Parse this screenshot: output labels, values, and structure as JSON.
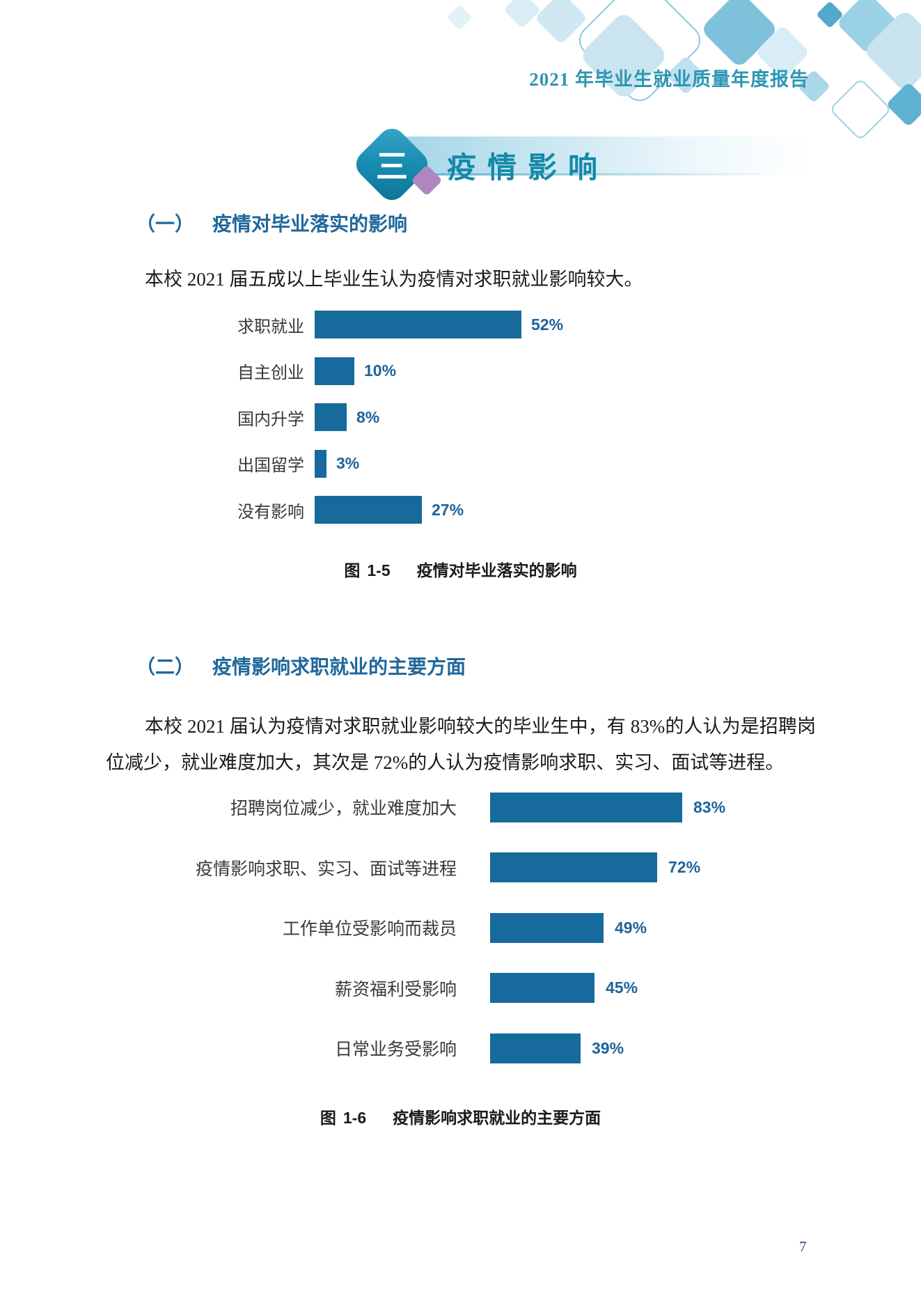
{
  "page": {
    "header_title": "2021 年毕业生就业质量年度报告",
    "page_number": "7"
  },
  "banner": {
    "badge_text": "三",
    "title": "疫情影响"
  },
  "section1": {
    "heading_num": "（一）",
    "heading_text": "疫情对毕业落实的影响",
    "paragraph": "本校 2021 届五成以上毕业生认为疫情对求职就业影响较大。",
    "caption_prefix": "图",
    "caption_num": "1-5",
    "caption_text": "疫情对毕业落实的影响"
  },
  "section2": {
    "heading_num": "（二）",
    "heading_text": "疫情影响求职就业的主要方面",
    "paragraph": "本校 2021 届认为疫情对求职就业影响较大的毕业生中，有 83%的人认为是招聘岗位减少，就业难度加大，其次是 72%的人认为疫情影响求职、实习、面试等进程。",
    "caption_prefix": "图",
    "caption_num": "1-6",
    "caption_text": "疫情影响求职就业的主要方面"
  },
  "chart_data": [
    {
      "type": "bar",
      "orientation": "horizontal",
      "title": "图 1-5 疫情对毕业落实的影响",
      "categories": [
        "求职就业",
        "自主创业",
        "国内升学",
        "出国留学",
        "没有影响"
      ],
      "values": [
        52,
        10,
        8,
        3,
        27
      ],
      "unit": "%",
      "xlim": [
        0,
        100
      ],
      "grid": false,
      "legend": "none",
      "data_labels": "outside-end"
    },
    {
      "type": "bar",
      "orientation": "horizontal",
      "title": "图 1-6 疫情影响求职就业的主要方面",
      "categories": [
        "招聘岗位减少，就业难度加大",
        "疫情影响求职、实习、面试等进程",
        "工作单位受影响而裁员",
        "薪资福利受影响",
        "日常业务受影响"
      ],
      "values": [
        83,
        72,
        49,
        45,
        39
      ],
      "unit": "%",
      "xlim": [
        0,
        100
      ],
      "grid": false,
      "legend": "none",
      "data_labels": "outside-end"
    }
  ],
  "colors": {
    "bar": "#176A9C",
    "value_label": "#1E639B",
    "heading": "#1F679B",
    "header_title": "#2D96B3",
    "banner_title": "#1489A8",
    "caption_number": "#2E75B6",
    "badge_teal_light": "#3BA7C6",
    "badge_teal_dark": "#0C7195",
    "purple_diamond": "#AF87BF"
  }
}
